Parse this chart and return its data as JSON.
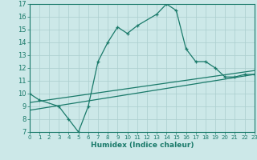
{
  "xlabel": "Humidex (Indice chaleur)",
  "ylabel": "",
  "xlim": [
    0,
    23
  ],
  "ylim": [
    7,
    17
  ],
  "yticks": [
    7,
    8,
    9,
    10,
    11,
    12,
    13,
    14,
    15,
    16,
    17
  ],
  "xticks": [
    0,
    1,
    2,
    3,
    4,
    5,
    6,
    7,
    8,
    9,
    10,
    11,
    12,
    13,
    14,
    15,
    16,
    17,
    18,
    19,
    20,
    21,
    22,
    23
  ],
  "bg_color": "#cce8e8",
  "line_color": "#1a7a6a",
  "grid_color": "#aacece",
  "main_line_x": [
    0,
    1,
    3,
    4,
    5,
    6,
    7,
    8,
    9,
    10,
    11,
    13,
    14,
    15,
    16,
    17,
    18,
    19,
    20,
    21,
    22,
    23
  ],
  "main_line_y": [
    10.0,
    9.5,
    9.0,
    8.0,
    7.0,
    9.0,
    12.5,
    14.0,
    15.2,
    14.7,
    15.3,
    16.2,
    17.0,
    16.5,
    13.5,
    12.5,
    12.5,
    12.0,
    11.3,
    11.3,
    11.5,
    11.5
  ],
  "line2_x": [
    0,
    23
  ],
  "line2_y": [
    8.7,
    11.5
  ],
  "line3_x": [
    0,
    23
  ],
  "line3_y": [
    9.3,
    11.8
  ],
  "marker_size": 3.0,
  "font_size": 6.5
}
